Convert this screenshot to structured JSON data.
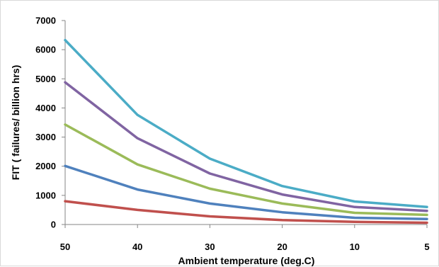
{
  "chart_data": {
    "type": "line",
    "x": [
      50,
      40,
      30,
      20,
      10,
      5
    ],
    "x_tick_labels": [
      "50",
      "40",
      "30",
      "20",
      "10",
      "5"
    ],
    "y_ticks": [
      0,
      1000,
      2000,
      3000,
      4000,
      5000,
      6000,
      7000
    ],
    "y_tick_labels": [
      "0",
      "1000",
      "2000",
      "3000",
      "4000",
      "5000",
      "6000",
      "7000"
    ],
    "ylim": [
      0,
      7000
    ],
    "xlabel": "Ambient temperature (deg.C)",
    "ylabel": "FIT ( failures/ billion hrs)",
    "grid": false,
    "legend": "none",
    "series": [
      {
        "values": [
          6330,
          3760,
          2260,
          1320,
          790,
          600
        ],
        "color": "#4bacc6"
      },
      {
        "values": [
          4880,
          2960,
          1750,
          1030,
          600,
          470
        ],
        "color": "#8064a2"
      },
      {
        "values": [
          3430,
          2060,
          1230,
          720,
          400,
          330
        ],
        "color": "#9bbb59"
      },
      {
        "values": [
          2010,
          1200,
          720,
          420,
          230,
          190
        ],
        "color": "#4f81bd"
      },
      {
        "values": [
          800,
          500,
          280,
          150,
          90,
          60
        ],
        "color": "#c0504d"
      }
    ]
  }
}
